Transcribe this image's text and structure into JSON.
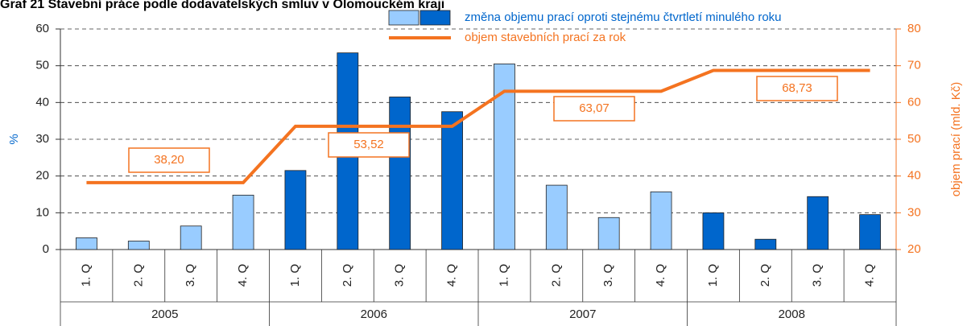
{
  "chart_data": {
    "type": "bar",
    "title": "Graf 21 Stavební práce podle dodavatelských smluv v Olomouckém kraji",
    "categories": [
      "1. Q",
      "2. Q",
      "3. Q",
      "4. Q",
      "1. Q",
      "2. Q",
      "3. Q",
      "4. Q",
      "1. Q",
      "2. Q",
      "3. Q",
      "4. Q",
      "1. Q",
      "2. Q",
      "3. Q",
      "4. Q"
    ],
    "groups": [
      "2005",
      "2006",
      "2007",
      "2008"
    ],
    "series": [
      {
        "name": "změna objemu prací oproti stejnému čtvrtletí minulého roku",
        "type": "bar",
        "colors": [
          "#99ccff",
          "#99ccff",
          "#99ccff",
          "#99ccff",
          "#0066cc",
          "#0066cc",
          "#0066cc",
          "#0066cc",
          "#99ccff",
          "#99ccff",
          "#99ccff",
          "#99ccff",
          "#0066cc",
          "#0066cc",
          "#0066cc",
          "#0066cc"
        ],
        "values": [
          3.2,
          2.3,
          6.4,
          14.8,
          21.5,
          53.5,
          41.5,
          37.5,
          50.5,
          17.5,
          8.7,
          15.7,
          10,
          2.8,
          14.4,
          9.5
        ]
      },
      {
        "name": "objem stavebních prací za rok",
        "type": "line",
        "axis": "y2",
        "color": "#f47320",
        "values": [
          38.2,
          38.2,
          38.2,
          38.2,
          53.52,
          53.52,
          53.52,
          53.52,
          63.07,
          63.07,
          63.07,
          63.07,
          68.73,
          68.73,
          68.73,
          68.73
        ],
        "annotations": [
          {
            "index": 1,
            "label": "38,20"
          },
          {
            "index": 5,
            "label": "53,52"
          },
          {
            "index": 9,
            "label": "63,07"
          },
          {
            "index": 13,
            "label": "68,73"
          }
        ]
      }
    ],
    "ylabel": "%",
    "y2label": "objem prací (mld. Kč)",
    "ylim": [
      0,
      60
    ],
    "yticks": [
      0,
      10,
      20,
      30,
      40,
      50,
      60
    ],
    "y2lim": [
      20,
      80
    ],
    "y2ticks": [
      20,
      30,
      40,
      50,
      60,
      70,
      80
    ],
    "grid": true
  }
}
